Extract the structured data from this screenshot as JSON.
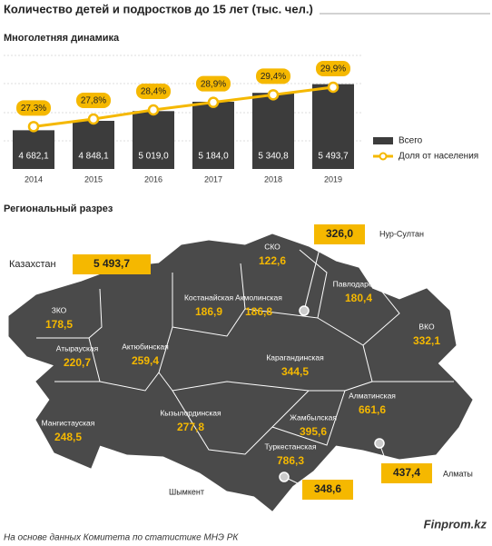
{
  "header": {
    "title": "Количество детей и подростков до 15 лет (тыс. чел.)"
  },
  "chart_data": {
    "type": "bar",
    "subtitle": "Многолетняя динамика",
    "categories": [
      "2014",
      "2015",
      "2016",
      "2017",
      "2018",
      "2019"
    ],
    "series": [
      {
        "name": "Всего",
        "type": "bar",
        "color": "#3c3c3c",
        "values": [
          4682.1,
          4848.1,
          5019.0,
          5184.0,
          5340.8,
          5493.7
        ],
        "value_labels": [
          "4 682,1",
          "4 848,1",
          "5 019,0",
          "5 184,0",
          "5 340,8",
          "5 493,7"
        ]
      },
      {
        "name": "Доля от населения",
        "type": "line",
        "axis": "y2",
        "color": "#f5b800",
        "values": [
          27.3,
          27.8,
          28.4,
          28.9,
          29.4,
          29.9
        ],
        "value_labels": [
          "27,3%",
          "27,8%",
          "28,4%",
          "28,9%",
          "29,4%",
          "29,9%"
        ]
      }
    ],
    "ylim": [
      4000,
      6000
    ],
    "y2lim": [
      24.5,
      32
    ],
    "legend": "right"
  },
  "regional": {
    "title": "Региональный разрез",
    "total_name": "Казахстан",
    "total_value": "5 493,7",
    "regions": [
      {
        "name": "ЗКО",
        "value": "178,5"
      },
      {
        "name": "Атырауская",
        "value": "220,7"
      },
      {
        "name": "Мангистауская",
        "value": "248,5"
      },
      {
        "name": "Актюбинская",
        "value": "259,4"
      },
      {
        "name": "Костанайская",
        "value": "186,9"
      },
      {
        "name": "СКО",
        "value": "122,6"
      },
      {
        "name": "Акмолинская",
        "value": "186,8"
      },
      {
        "name": "Павлодарская",
        "value": "180,4"
      },
      {
        "name": "ВКО",
        "value": "332,1"
      },
      {
        "name": "Карагандинская",
        "value": "344,5"
      },
      {
        "name": "Кызылординская",
        "value": "277,8"
      },
      {
        "name": "Жамбылская",
        "value": "395,6"
      },
      {
        "name": "Алматинская",
        "value": "661,6"
      },
      {
        "name": "Туркестанская",
        "value": "786,3"
      }
    ],
    "cities": [
      {
        "name": "Нур-Султан",
        "value": "326,0"
      },
      {
        "name": "Алматы",
        "value": "437,4"
      },
      {
        "name": "Шымкент",
        "value": "348,6"
      }
    ]
  },
  "footer": {
    "source": "На основе данных Комитета по статистике МНЭ РК",
    "brand": "Finprom.kz"
  }
}
